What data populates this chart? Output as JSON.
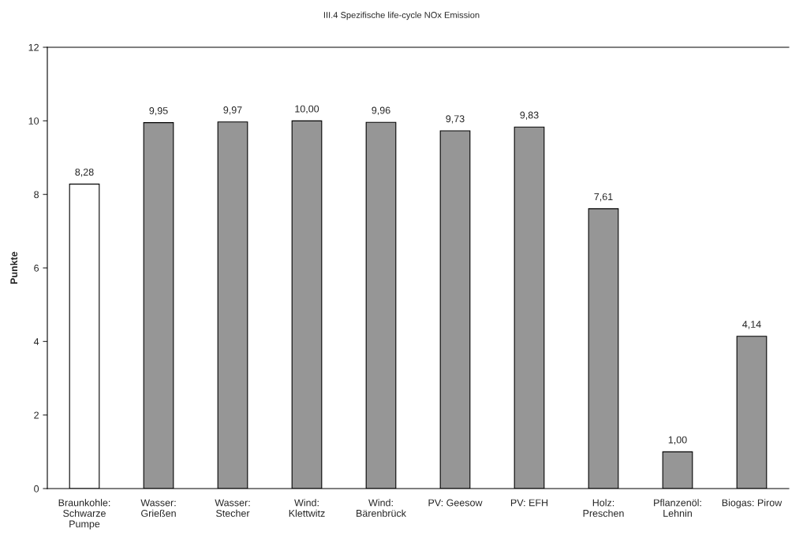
{
  "chart_data": {
    "type": "bar",
    "title": "III.4 Spezifische life-cycle NOx Emission",
    "ylabel": "Punkte",
    "categories": [
      "Braunkohle:\nSchwarze\nPumpe",
      "Wasser:\nGrießen",
      "Wasser:\nStecher",
      "Wind:\nKlettwitz",
      "Wind:\nBärenbrück",
      "PV: Geesow",
      "PV: EFH",
      "Holz:\nPreschen",
      "Pflanzenöl:\nLehnin",
      "Biogas: Pirow"
    ],
    "values": [
      8.28,
      9.95,
      9.97,
      10.0,
      9.96,
      9.73,
      9.83,
      7.61,
      1.0,
      4.14
    ],
    "value_labels": [
      "8,28",
      "9,95",
      "9,97",
      "10,00",
      "9,96",
      "9,73",
      "9,83",
      "7,61",
      "1,00",
      "4,14"
    ],
    "colors": [
      "#ffffff",
      "#969696",
      "#969696",
      "#969696",
      "#969696",
      "#969696",
      "#969696",
      "#969696",
      "#969696",
      "#969696"
    ],
    "ylim": [
      0,
      12
    ],
    "yticks": [
      0,
      2,
      4,
      6,
      8,
      10,
      12
    ],
    "grid": false,
    "legend": false
  }
}
